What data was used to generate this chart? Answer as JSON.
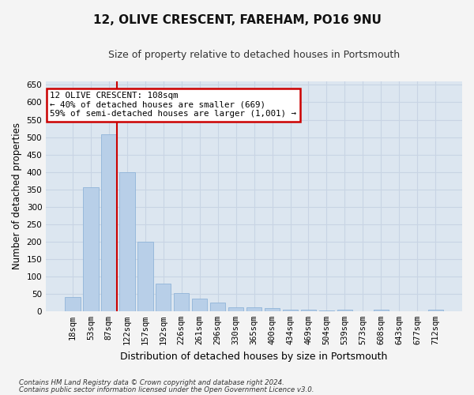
{
  "title": "12, OLIVE CRESCENT, FAREHAM, PO16 9NU",
  "subtitle": "Size of property relative to detached houses in Portsmouth",
  "xlabel": "Distribution of detached houses by size in Portsmouth",
  "ylabel": "Number of detached properties",
  "categories": [
    "18sqm",
    "53sqm",
    "87sqm",
    "122sqm",
    "157sqm",
    "192sqm",
    "226sqm",
    "261sqm",
    "296sqm",
    "330sqm",
    "365sqm",
    "400sqm",
    "434sqm",
    "469sqm",
    "504sqm",
    "539sqm",
    "573sqm",
    "608sqm",
    "643sqm",
    "677sqm",
    "712sqm"
  ],
  "values": [
    40,
    357,
    507,
    400,
    200,
    78,
    52,
    35,
    25,
    12,
    10,
    8,
    5,
    3,
    2,
    5,
    0,
    5,
    0,
    0,
    5
  ],
  "bar_color": "#b8cfe8",
  "bar_edge_color": "#90b4d8",
  "grid_color": "#c8d4e4",
  "background_color": "#dce6f0",
  "vline_x_index": 2,
  "vline_color": "#cc0000",
  "annotation_text": "12 OLIVE CRESCENT: 108sqm\n← 40% of detached houses are smaller (669)\n59% of semi-detached houses are larger (1,001) →",
  "annotation_box_facecolor": "#ffffff",
  "annotation_box_edgecolor": "#cc0000",
  "ylim": [
    0,
    660
  ],
  "yticks": [
    0,
    50,
    100,
    150,
    200,
    250,
    300,
    350,
    400,
    450,
    500,
    550,
    600,
    650
  ],
  "fig_bg": "#f4f4f4",
  "footnote1": "Contains HM Land Registry data © Crown copyright and database right 2024.",
  "footnote2": "Contains public sector information licensed under the Open Government Licence v3.0."
}
